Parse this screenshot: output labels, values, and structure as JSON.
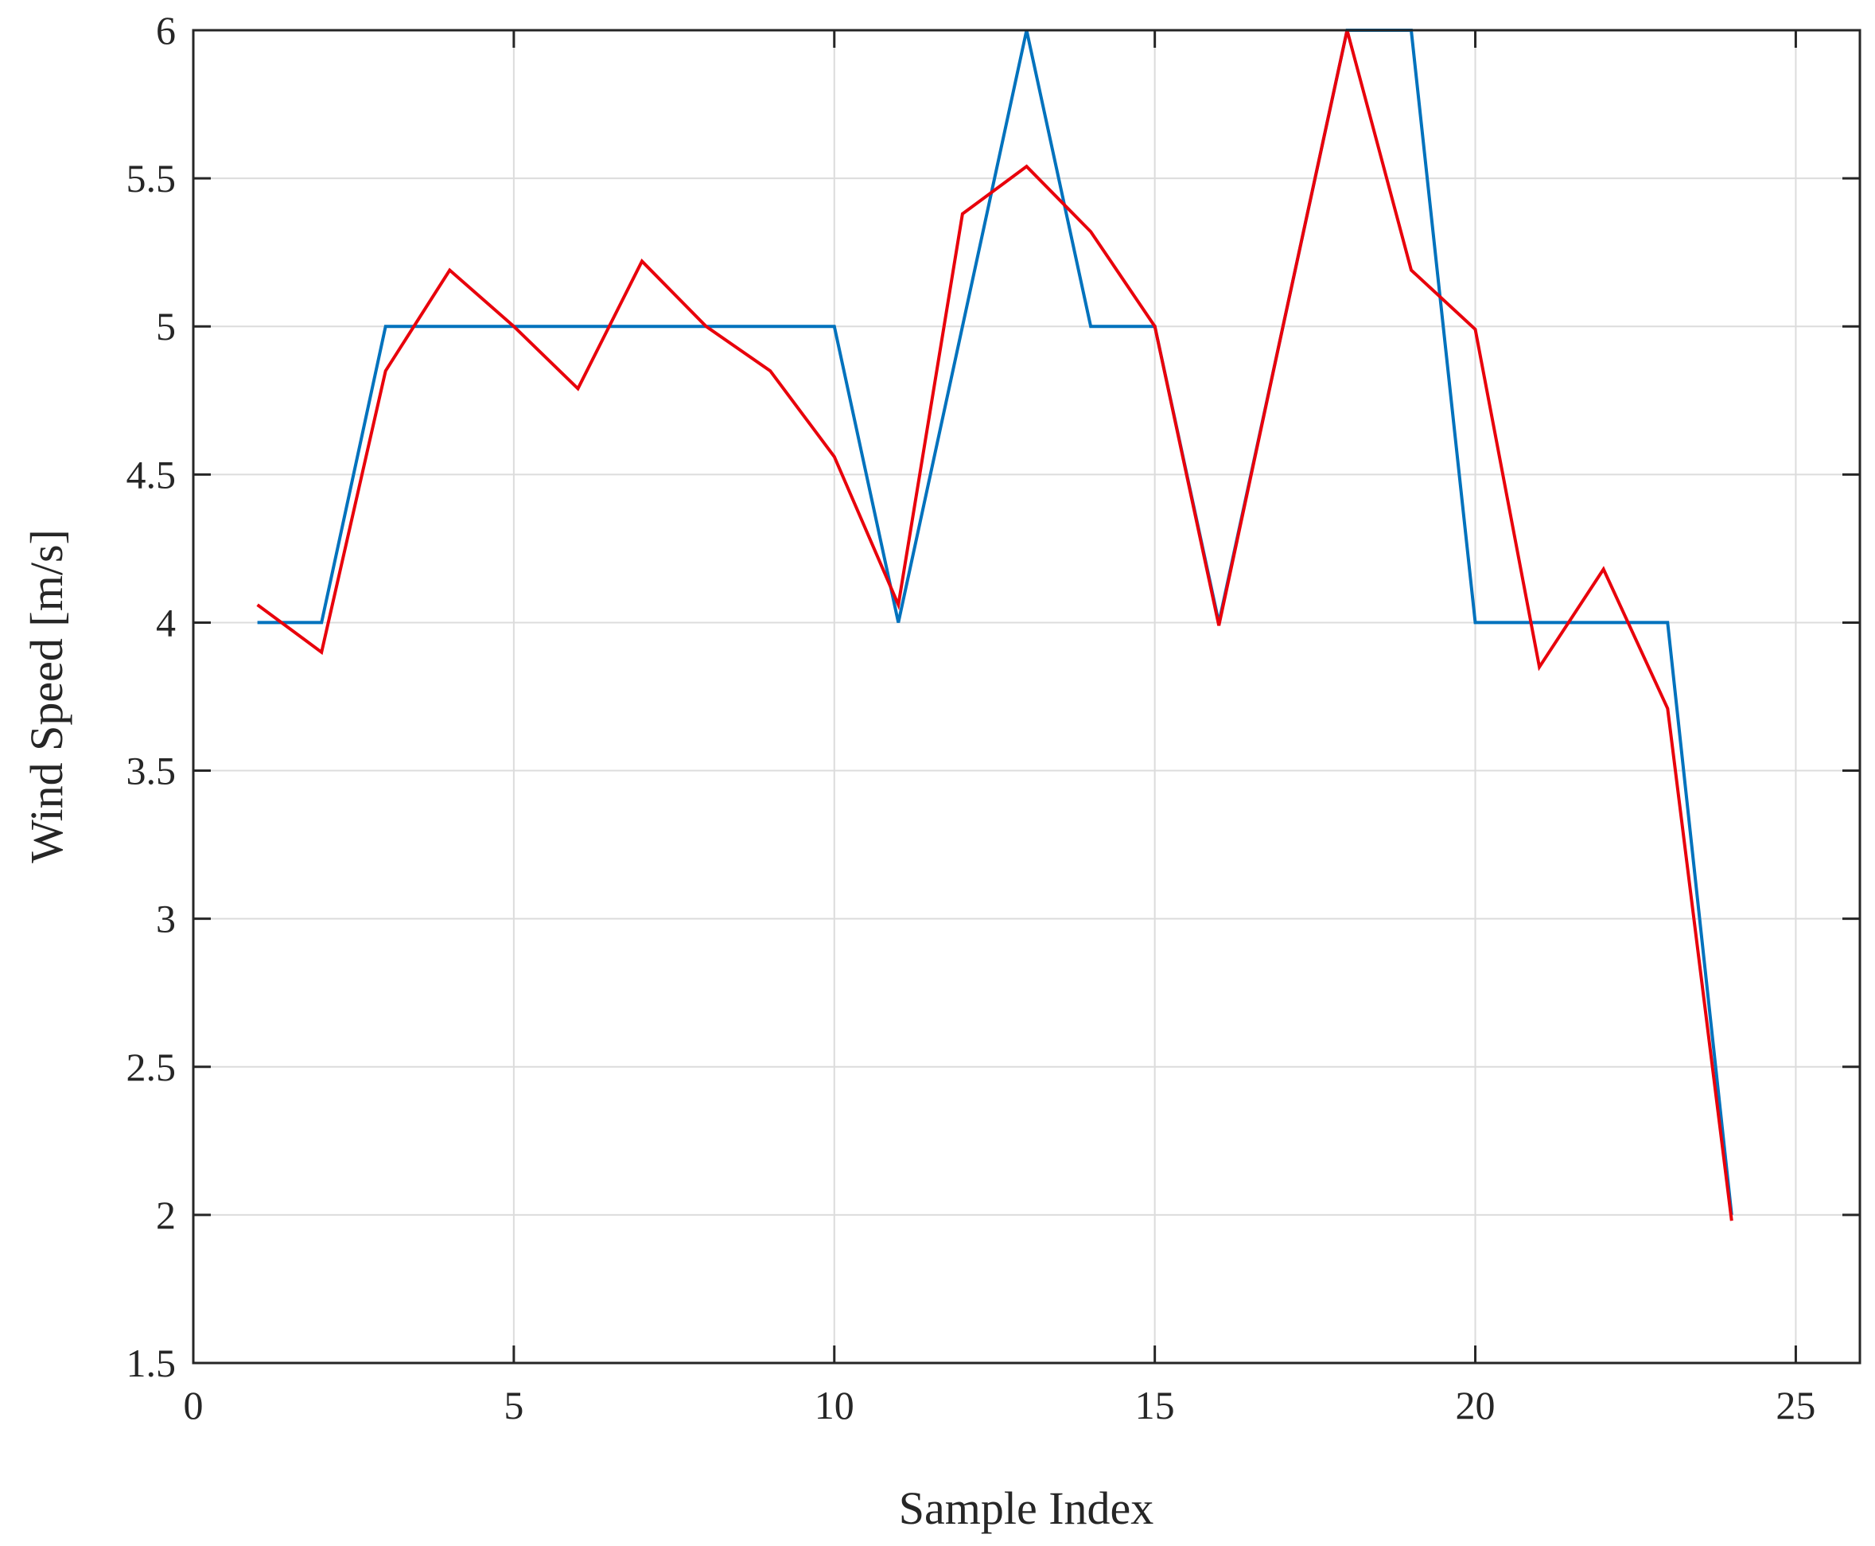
{
  "chart_data": {
    "type": "line",
    "title": "",
    "xlabel": "Sample Index",
    "ylabel": "Wind Speed [m/s]",
    "xlim": [
      0,
      26
    ],
    "ylim": [
      1.5,
      6
    ],
    "xticks": [
      0,
      5,
      10,
      15,
      20,
      25
    ],
    "xtick_labels": [
      "0",
      "5",
      "10",
      "15",
      "20",
      "25"
    ],
    "yticks": [
      1.5,
      2,
      2.5,
      3,
      3.5,
      4,
      4.5,
      5,
      5.5,
      6
    ],
    "ytick_labels": [
      "1.5",
      "2",
      "2.5",
      "3",
      "3.5",
      "4",
      "4.5",
      "5",
      "5.5",
      "6"
    ],
    "grid": true,
    "legend": "none",
    "series": [
      {
        "color": "#0072BD",
        "x": [
          1,
          2,
          3,
          4,
          5,
          6,
          7,
          8,
          9,
          10,
          11,
          12,
          13,
          14,
          15,
          16,
          17,
          18,
          19,
          20,
          21,
          22,
          23,
          24
        ],
        "y": [
          4,
          4,
          5,
          5,
          5,
          5,
          5,
          5,
          5,
          5,
          4,
          5,
          6,
          5,
          5,
          4,
          5,
          6,
          6,
          4,
          4,
          4,
          4,
          2
        ]
      },
      {
        "color": "#E8000B",
        "x": [
          1,
          2,
          3,
          4,
          5,
          6,
          7,
          8,
          9,
          10,
          11,
          12,
          13,
          14,
          15,
          16,
          17,
          18,
          19,
          20,
          21,
          22,
          23,
          24
        ],
        "y": [
          4.06,
          3.9,
          4.85,
          5.19,
          5.0,
          4.79,
          5.22,
          5.0,
          4.85,
          4.56,
          4.06,
          5.38,
          5.54,
          5.32,
          5.0,
          3.99,
          5.0,
          6.0,
          5.19,
          4.99,
          3.85,
          4.18,
          3.71,
          1.98
        ]
      }
    ]
  }
}
